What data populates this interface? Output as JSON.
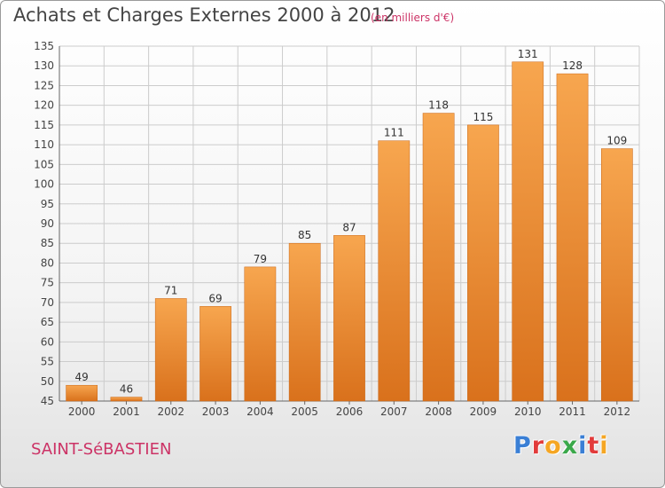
{
  "header": {
    "title": "Achats et Charges Externes 2000 à 2012",
    "subtitle": "(en milliers d'€)"
  },
  "footer": {
    "commune": "SAINT-SéBASTIEN",
    "logo_text": "Proxiti",
    "logo_colors": [
      "#3a7fd5",
      "#e23b3b",
      "#f5a623",
      "#3aa84a",
      "#3a7fd5",
      "#e23b3b",
      "#f5a623"
    ]
  },
  "colors": {
    "bar_top": "#f7a64f",
    "bar_bottom": "#d9711c",
    "label_text": "#333333",
    "grid": "#cccccc"
  },
  "chart_data": {
    "type": "bar",
    "categories": [
      "2000",
      "2001",
      "2002",
      "2003",
      "2004",
      "2005",
      "2006",
      "2007",
      "2008",
      "2009",
      "2010",
      "2011",
      "2012"
    ],
    "values": [
      49,
      46,
      71,
      69,
      79,
      85,
      87,
      111,
      118,
      115,
      131,
      128,
      109
    ],
    "ylim": [
      45,
      135
    ],
    "yticks": [
      45,
      50,
      55,
      60,
      65,
      70,
      75,
      80,
      85,
      90,
      95,
      100,
      105,
      110,
      115,
      120,
      125,
      130,
      135
    ],
    "grid": true,
    "data_labels": true
  }
}
